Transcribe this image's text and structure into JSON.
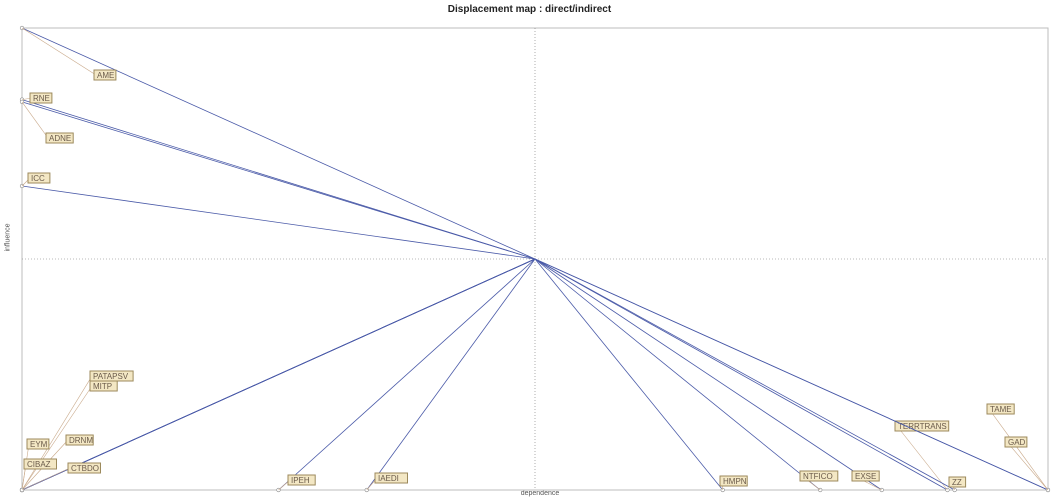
{
  "chart_data": {
    "type": "scatter",
    "title": "Displacement map :  direct/indirect",
    "xlabel": "dependence",
    "ylabel": "influence",
    "xlim": [
      0,
      1
    ],
    "ylim": [
      0,
      1
    ],
    "colors": {
      "arrow": "#4a5aa8",
      "leader": "#c9a98a",
      "label_fill": "#f3e7c4",
      "label_stroke": "#9c8a5c",
      "axis": "#777777"
    },
    "center": {
      "x": 0.5,
      "y": 0.5
    },
    "points": [
      {
        "label": "AME",
        "x": 0.0,
        "y": 1.0
      },
      {
        "label": "RNE",
        "x": 0.0,
        "y": 0.845
      },
      {
        "label": "ADNE",
        "x": 0.0,
        "y": 0.84
      },
      {
        "label": "ICC",
        "x": 0.0,
        "y": 0.658
      },
      {
        "label": "PATAPSV",
        "x": 0.0,
        "y": 0.0
      },
      {
        "label": "MITP",
        "x": 0.0,
        "y": 0.0
      },
      {
        "label": "EYM",
        "x": 0.0,
        "y": 0.0
      },
      {
        "label": "DRNM",
        "x": 0.0,
        "y": 0.0
      },
      {
        "label": "CIBAZ",
        "x": 0.0,
        "y": 0.0
      },
      {
        "label": "CTBDO",
        "x": 0.0,
        "y": 0.0
      },
      {
        "label": "IPEH",
        "x": 0.25,
        "y": 0.0
      },
      {
        "label": "IAEDI",
        "x": 0.336,
        "y": 0.0
      },
      {
        "label": "HMPN",
        "x": 0.683,
        "y": 0.0
      },
      {
        "label": "NTFICO",
        "x": 0.778,
        "y": 0.0
      },
      {
        "label": "EXSE",
        "x": 0.838,
        "y": 0.0
      },
      {
        "label": "TERRTRANS",
        "x": 0.902,
        "y": 0.0
      },
      {
        "label": "ZZ",
        "x": 0.909,
        "y": 0.0
      },
      {
        "label": "TAME",
        "x": 1.0,
        "y": 0.0
      },
      {
        "label": "GAD",
        "x": 1.0,
        "y": 0.0
      }
    ],
    "grid": false,
    "legend": "none"
  }
}
